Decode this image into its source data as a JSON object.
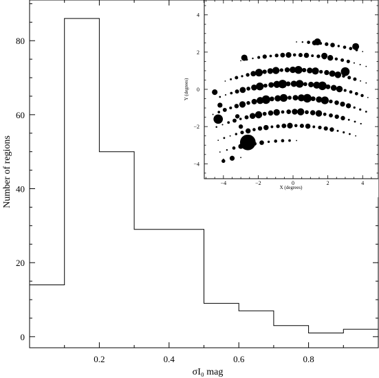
{
  "chart_data": [
    {
      "type": "bar",
      "style": "step-histogram",
      "x_bin_edges": [
        0.0,
        0.1,
        0.2,
        0.3,
        0.4,
        0.5,
        0.6,
        0.7,
        0.8,
        0.9,
        1.0
      ],
      "values": [
        14,
        86,
        50,
        29,
        29,
        9,
        7,
        3,
        1,
        2
      ],
      "xlabel": "σI₀ mag",
      "ylabel": "Number of regions",
      "xlim": [
        0.0,
        1.0
      ],
      "ylim": [
        -3,
        91
      ],
      "x_ticks": [
        "0.2",
        "0.4",
        "0.6",
        "0.8"
      ],
      "x_tick_values": [
        0.2,
        0.4,
        0.6,
        0.8
      ],
      "y_ticks": [
        "0",
        "20",
        "40",
        "60",
        "80"
      ],
      "y_tick_values": [
        0,
        20,
        40,
        60,
        80
      ],
      "grid": false,
      "color": "#000000"
    },
    {
      "type": "scatter",
      "style": "bubble",
      "xlabel": "X (degrees)",
      "ylabel": "Y (degrees)",
      "xlim": [
        -5.1,
        4.9
      ],
      "ylim": [
        -4.8,
        4.8
      ],
      "x_ticks": [
        "−4",
        "−2",
        "0",
        "2",
        "4"
      ],
      "x_tick_values": [
        -4,
        -2,
        0,
        2,
        4
      ],
      "y_ticks": [
        "−4",
        "−2",
        "0",
        "2",
        "4"
      ],
      "y_tick_values": [
        -4,
        -2,
        0,
        2,
        4
      ],
      "grid": false,
      "color": "#000000",
      "rows": [
        {
          "x_start": 0.2,
          "x_end": 4.0,
          "y_mid": 2.55,
          "y_curve": 0.13,
          "n": 12,
          "base_size": 0.35
        },
        {
          "x_start": -3.0,
          "x_end": 4.2,
          "y_mid": 1.85,
          "y_curve": 0.14,
          "n": 22,
          "base_size": 0.4
        },
        {
          "x_start": -3.9,
          "x_end": 4.2,
          "y_mid": 1.05,
          "y_curve": 0.16,
          "n": 26,
          "base_size": 0.55
        },
        {
          "x_start": -4.2,
          "x_end": 4.3,
          "y_mid": 0.3,
          "y_curve": 0.16,
          "n": 27,
          "base_size": 0.6
        },
        {
          "x_start": -4.6,
          "x_end": 4.2,
          "y_mid": -0.45,
          "y_curve": 0.17,
          "n": 27,
          "base_size": 0.6
        },
        {
          "x_start": -4.4,
          "x_end": 3.9,
          "y_mid": -1.2,
          "y_curve": 0.17,
          "n": 25,
          "base_size": 0.5
        },
        {
          "x_start": -4.3,
          "x_end": 3.6,
          "y_mid": -1.95,
          "y_curve": 0.17,
          "n": 24,
          "base_size": 0.4
        },
        {
          "x_start": -4.2,
          "x_end": 0.2,
          "y_mid": -2.75,
          "y_curve": 0.14,
          "n": 12,
          "base_size": 0.35
        },
        {
          "x_start": -4.0,
          "x_end": -3.0,
          "y_mid": -3.55,
          "y_curve": 0.05,
          "n": 3,
          "base_size": 0.35
        }
      ],
      "big_points": [
        {
          "x": -2.6,
          "y": -2.85,
          "size": 5.0
        },
        {
          "x": -4.3,
          "y": -1.6,
          "size": 3.0
        },
        {
          "x": 3.0,
          "y": 0.95,
          "size": 2.8
        },
        {
          "x": 3.6,
          "y": 2.3,
          "size": 2.2
        },
        {
          "x": 1.4,
          "y": 2.55,
          "size": 2.2
        },
        {
          "x": 1.8,
          "y": 1.8,
          "size": 2.0
        },
        {
          "x": -2.8,
          "y": 1.7,
          "size": 2.0
        },
        {
          "x": -4.5,
          "y": -0.15,
          "size": 1.8
        },
        {
          "x": -4.2,
          "y": -0.85,
          "size": 1.6
        },
        {
          "x": -3.0,
          "y": -2.0,
          "size": 1.4
        },
        {
          "x": -3.2,
          "y": -1.45,
          "size": 1.4
        },
        {
          "x": -1.9,
          "y": -2.1,
          "size": 1.4
        },
        {
          "x": -4.0,
          "y": -3.85,
          "size": 1.2
        },
        {
          "x": -0.9,
          "y": 1.0,
          "size": 1.4
        },
        {
          "x": 0.4,
          "y": 0.25,
          "size": 1.3
        }
      ]
    }
  ]
}
